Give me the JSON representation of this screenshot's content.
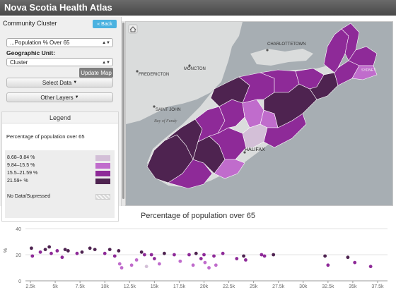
{
  "header": {
    "title": "Nova Scotia Health Atlas"
  },
  "sidebar": {
    "panel_title": "Community Cluster",
    "back_label": "Back",
    "indicator_select": "...Population % Over 65",
    "geo_unit_label": "Geographic Unit:",
    "geo_unit_select": "Cluster",
    "update_label": "Update Map",
    "select_data_label": "Select Data",
    "other_layers_label": "Other Layers"
  },
  "legend": {
    "title": "Legend",
    "subtitle": "Percentage of population over 65",
    "items": [
      {
        "label": "8.68–9.84 %",
        "color": "#d3bfd7"
      },
      {
        "label": "9.84–15.5 %",
        "color": "#c06ccc"
      },
      {
        "label": "15.5–21.59 %",
        "color": "#8e2a98"
      },
      {
        "label": "21.59+ %",
        "color": "#4e2350"
      }
    ],
    "nodata_label": "No Data/Supressed"
  },
  "map": {
    "labels": {
      "charlottetown": "CHARLOTTETOWN",
      "fredericton": "FREDERICTON",
      "moncton": "MONCTON",
      "saint_john": "SAINT JOHN",
      "bay_of_fundy": "Bay of Fundy",
      "halifax": "HALIFAX",
      "sydney": "SYDNEY"
    },
    "colors": {
      "water": "#a7aeb3",
      "land": "#dadcdc",
      "border": "#ffffff"
    }
  },
  "chart_data": {
    "type": "scatter",
    "title": "Percentage of population over 65",
    "ylabel": "%",
    "ylim": [
      0,
      40
    ],
    "yticks": [
      0,
      20,
      40
    ],
    "xlim": [
      2000,
      38500
    ],
    "xticks": [
      2500,
      5000,
      7500,
      10000,
      12500,
      15000,
      17500,
      20000,
      22500,
      25000,
      27500,
      30000,
      32500,
      35000,
      37500
    ],
    "xticklabels": [
      "2.5k",
      "5k",
      "7.5k",
      "10k",
      "12.5k",
      "15k",
      "17.5k",
      "20k",
      "22.5k",
      "25k",
      "27.5k",
      "30k",
      "32.5k",
      "35k",
      "37.5k"
    ],
    "points": [
      {
        "x": 2600,
        "y": 25,
        "c": 3
      },
      {
        "x": 2700,
        "y": 19,
        "c": 2
      },
      {
        "x": 3500,
        "y": 22,
        "c": 2
      },
      {
        "x": 4000,
        "y": 24,
        "c": 3
      },
      {
        "x": 4400,
        "y": 26,
        "c": 3
      },
      {
        "x": 4600,
        "y": 21,
        "c": 2
      },
      {
        "x": 5200,
        "y": 23,
        "c": 2
      },
      {
        "x": 5700,
        "y": 18,
        "c": 2
      },
      {
        "x": 6000,
        "y": 24,
        "c": 3
      },
      {
        "x": 6300,
        "y": 23,
        "c": 3
      },
      {
        "x": 7200,
        "y": 21,
        "c": 2
      },
      {
        "x": 7700,
        "y": 22,
        "c": 3
      },
      {
        "x": 8500,
        "y": 25,
        "c": 3
      },
      {
        "x": 9000,
        "y": 24,
        "c": 3
      },
      {
        "x": 10000,
        "y": 21,
        "c": 2
      },
      {
        "x": 10500,
        "y": 24,
        "c": 3
      },
      {
        "x": 11000,
        "y": 19,
        "c": 2
      },
      {
        "x": 11400,
        "y": 23,
        "c": 3
      },
      {
        "x": 11500,
        "y": 13,
        "c": 1
      },
      {
        "x": 11700,
        "y": 10,
        "c": 1
      },
      {
        "x": 12700,
        "y": 12,
        "c": 1
      },
      {
        "x": 13200,
        "y": 16,
        "c": 1
      },
      {
        "x": 13700,
        "y": 22,
        "c": 3
      },
      {
        "x": 14000,
        "y": 20,
        "c": 2
      },
      {
        "x": 14200,
        "y": 11,
        "c": 0
      },
      {
        "x": 14700,
        "y": 20,
        "c": 2
      },
      {
        "x": 15000,
        "y": 17,
        "c": 2
      },
      {
        "x": 15500,
        "y": 13,
        "c": 1
      },
      {
        "x": 16000,
        "y": 21,
        "c": 3
      },
      {
        "x": 17000,
        "y": 20,
        "c": 2
      },
      {
        "x": 17600,
        "y": 15,
        "c": 1
      },
      {
        "x": 18500,
        "y": 20,
        "c": 2
      },
      {
        "x": 18900,
        "y": 12,
        "c": 1
      },
      {
        "x": 19200,
        "y": 21,
        "c": 3
      },
      {
        "x": 19700,
        "y": 17,
        "c": 2
      },
      {
        "x": 20000,
        "y": 20,
        "c": 2
      },
      {
        "x": 20100,
        "y": 14,
        "c": 1
      },
      {
        "x": 20500,
        "y": 10,
        "c": 1
      },
      {
        "x": 21000,
        "y": 19,
        "c": 2
      },
      {
        "x": 21200,
        "y": 12,
        "c": 1
      },
      {
        "x": 21900,
        "y": 21,
        "c": 2
      },
      {
        "x": 23300,
        "y": 17,
        "c": 2
      },
      {
        "x": 24000,
        "y": 19,
        "c": 3
      },
      {
        "x": 24200,
        "y": 16,
        "c": 2
      },
      {
        "x": 25800,
        "y": 20,
        "c": 2
      },
      {
        "x": 26100,
        "y": 19,
        "c": 2
      },
      {
        "x": 27000,
        "y": 20,
        "c": 3
      },
      {
        "x": 32200,
        "y": 19,
        "c": 3
      },
      {
        "x": 32500,
        "y": 12,
        "c": 2
      },
      {
        "x": 34500,
        "y": 18,
        "c": 3
      },
      {
        "x": 35200,
        "y": 14,
        "c": 2
      },
      {
        "x": 36800,
        "y": 11,
        "c": 2
      }
    ]
  }
}
